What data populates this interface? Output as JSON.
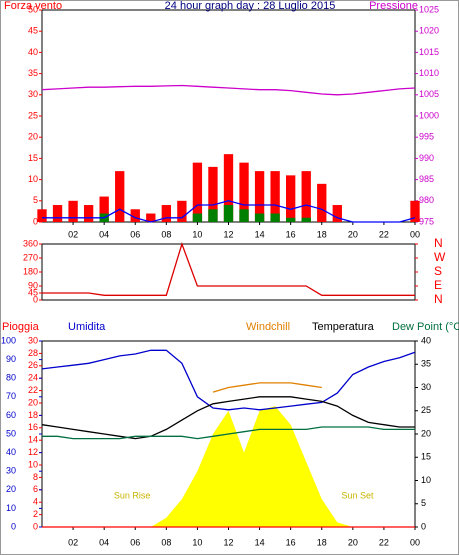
{
  "chart_data": [
    {
      "type": "combo",
      "title": "24 hour graph day : 28 Luglio 2015",
      "ylabel": "Forza vento",
      "y2label": "Pressione",
      "x": [
        0,
        1,
        2,
        3,
        4,
        5,
        6,
        7,
        8,
        9,
        10,
        11,
        12,
        13,
        14,
        15,
        16,
        17,
        18,
        19,
        20,
        21,
        22,
        23,
        24
      ],
      "xlim": [
        0,
        24
      ],
      "xticks": [
        {
          "value": 2,
          "label": "02"
        },
        {
          "value": 4,
          "label": "04"
        },
        {
          "value": 6,
          "label": "06"
        },
        {
          "value": 8,
          "label": "08"
        },
        10,
        12,
        14,
        16,
        18,
        20,
        22,
        {
          "value": 24,
          "label": "00"
        }
      ],
      "ylim": [
        0,
        50
      ],
      "yticks": [
        0,
        5,
        10,
        15,
        20,
        25,
        30,
        35,
        40,
        45,
        50
      ],
      "y2lim": [
        975,
        1025
      ],
      "y2ticks": [
        975,
        980,
        985,
        990,
        995,
        1000,
        1005,
        1010,
        1015,
        1020,
        1025
      ],
      "series": [
        {
          "name": "Forza vento",
          "type": "bar",
          "color": "#ff0000",
          "values": [
            3,
            4,
            5,
            4,
            6,
            12,
            3,
            2,
            4,
            5,
            14,
            13,
            16,
            14,
            12,
            12,
            11,
            12,
            9,
            4,
            0,
            0,
            0,
            0,
            5
          ]
        },
        {
          "type": "bar",
          "color": "#008000",
          "values": [
            0,
            0,
            0,
            0,
            2,
            0,
            0,
            0,
            0,
            0,
            2,
            3,
            4,
            3,
            2,
            2,
            1,
            1,
            0,
            0,
            0,
            0,
            0,
            0,
            0
          ]
        },
        {
          "type": "line",
          "color": "#0000ff",
          "values": [
            1,
            1,
            1,
            1,
            1,
            3,
            1,
            0,
            1,
            1,
            4,
            4,
            5,
            4,
            4,
            4,
            3,
            4,
            3,
            1,
            0,
            0,
            0,
            0,
            1
          ]
        },
        {
          "name": "Pressione",
          "type": "line",
          "axis": "y2",
          "color": "#cc00cc",
          "values": [
            1006.2,
            1006.4,
            1006.6,
            1006.8,
            1006.8,
            1006.9,
            1007,
            1007,
            1007.1,
            1007.2,
            1007,
            1006.8,
            1006.6,
            1006.4,
            1006.2,
            1006.2,
            1006,
            1005.6,
            1005.2,
            1005,
            1005.2,
            1005.6,
            1006,
            1006.4,
            1006.6
          ]
        }
      ]
    },
    {
      "type": "combo",
      "x": [
        0,
        1,
        2,
        3,
        4,
        5,
        6,
        7,
        8,
        9,
        10,
        11,
        12,
        13,
        14,
        15,
        16,
        17,
        18,
        19,
        20,
        21,
        22,
        23,
        24
      ],
      "xlim": [
        0,
        24
      ],
      "ylim": [
        0,
        360
      ],
      "yticks": [
        0,
        45,
        90,
        180,
        270,
        360
      ],
      "y2ticks": [
        {
          "value": 360,
          "label": "N"
        },
        {
          "value": 270,
          "label": "W"
        },
        {
          "value": 180,
          "label": "S"
        },
        {
          "value": 90,
          "label": "E"
        },
        {
          "value": 0,
          "label": "N"
        }
      ],
      "series": [
        {
          "type": "line",
          "color": "#dd0000",
          "values": [
            45,
            45,
            45,
            45,
            30,
            30,
            30,
            30,
            30,
            360,
            90,
            90,
            90,
            90,
            90,
            90,
            90,
            90,
            30,
            30,
            30,
            30,
            30,
            30,
            30
          ]
        }
      ]
    },
    {
      "type": "combo",
      "ylabel": "Pioggia",
      "y3label": "Umidita",
      "y2label": "Temperatura",
      "x": [
        0,
        1,
        2,
        3,
        4,
        5,
        6,
        7,
        8,
        9,
        10,
        11,
        12,
        13,
        14,
        15,
        16,
        17,
        18,
        19,
        20,
        21,
        22,
        23,
        24
      ],
      "xlim": [
        0,
        24
      ],
      "xticks": [
        {
          "value": 2,
          "label": "02"
        },
        {
          "value": 4,
          "label": "04"
        },
        {
          "value": 6,
          "label": "06"
        },
        {
          "value": 8,
          "label": "08"
        },
        10,
        12,
        14,
        16,
        18,
        20,
        22,
        {
          "value": 24,
          "label": "00"
        }
      ],
      "ylim": [
        0,
        30
      ],
      "yticks": [
        0,
        2,
        4,
        6,
        8,
        10,
        12,
        14,
        16,
        18,
        20,
        22,
        24,
        26,
        28,
        30
      ],
      "y3lim": [
        0,
        100
      ],
      "y3ticks": [
        0,
        10,
        20,
        30,
        40,
        50,
        60,
        70,
        80,
        90,
        100
      ],
      "y2lim": [
        0,
        40
      ],
      "y2ticks": [
        0,
        5,
        10,
        15,
        20,
        25,
        30,
        35,
        40
      ],
      "annotations": [
        {
          "text": "Sun Rise",
          "x": 5.8
        },
        {
          "text": "Sun Set",
          "x": 20.3
        }
      ],
      "series": [
        {
          "type": "area",
          "axis": "y2",
          "color": "#ffff00",
          "values": [
            0,
            0,
            0,
            0,
            0,
            0,
            0,
            0,
            2,
            6,
            12,
            20,
            25,
            16,
            25,
            26,
            22,
            14,
            6,
            1,
            0,
            0,
            0,
            0,
            0
          ]
        },
        {
          "name": "Umidita",
          "type": "line",
          "axis": "y3",
          "color": "#0000cc",
          "values": [
            85,
            86,
            87,
            88,
            90,
            92,
            93,
            95,
            95,
            88,
            70,
            64,
            63,
            64,
            63,
            64,
            65,
            66,
            67,
            72,
            82,
            86,
            89,
            91,
            94
          ]
        },
        {
          "name": "Windchill",
          "type": "line",
          "axis": "y2",
          "color": "#e08000",
          "values": [
            null,
            null,
            null,
            null,
            null,
            null,
            null,
            null,
            null,
            null,
            null,
            29,
            30,
            30.5,
            31,
            31,
            31,
            30.5,
            30,
            null,
            null,
            null,
            null,
            null,
            null
          ]
        },
        {
          "name": "Temperatura",
          "type": "line",
          "axis": "y2",
          "color": "#000000",
          "values": [
            22,
            21.5,
            21,
            20.5,
            20,
            19.5,
            19,
            19.5,
            21,
            23,
            25,
            26.5,
            27,
            27.5,
            28,
            28,
            28,
            27.5,
            27,
            26,
            24,
            22.5,
            22,
            21.5,
            21.5
          ]
        },
        {
          "name": "Dew Point (°C",
          "type": "line",
          "axis": "y2",
          "color": "#007040",
          "values": [
            19.5,
            19.5,
            19,
            19,
            19,
            19,
            19.5,
            19.5,
            19.5,
            19.5,
            19,
            19.5,
            20,
            20.5,
            21,
            21,
            21,
            21,
            21.5,
            21.5,
            21.5,
            21.5,
            21,
            21,
            21
          ]
        },
        {
          "name": "Pioggia",
          "type": "line",
          "color": "#ff0000",
          "values": [
            0,
            0,
            0,
            0,
            0,
            0,
            0,
            0,
            0,
            0,
            0,
            0,
            0,
            0,
            0,
            0,
            0,
            0,
            0,
            0,
            0,
            0,
            0,
            0,
            0
          ]
        }
      ]
    }
  ]
}
